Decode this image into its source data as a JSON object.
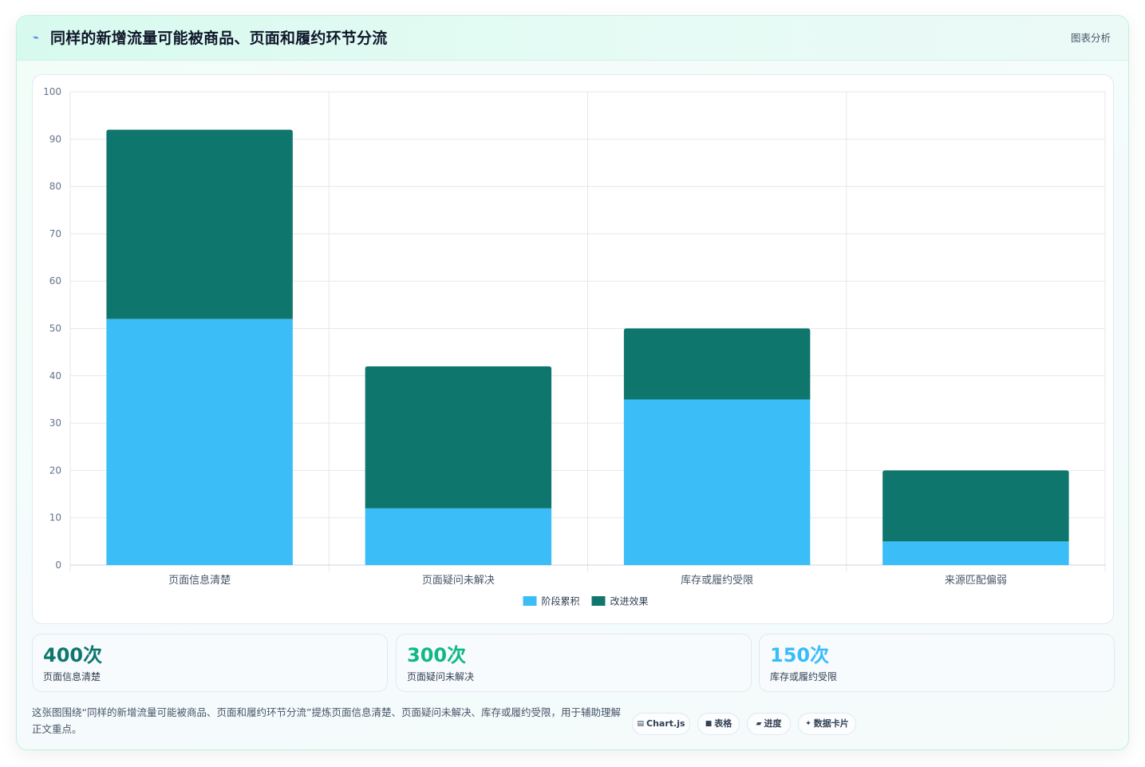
{
  "header": {
    "icon": "trend-icon",
    "title": "同样的新增流量可能被商品、页面和履约环节分流",
    "tag": "图表分析"
  },
  "chart_data": {
    "type": "bar",
    "stacked": true,
    "categories": [
      "页面信息清楚",
      "页面疑问未解决",
      "库存或履约受限",
      "来源匹配偏弱"
    ],
    "series": [
      {
        "name": "阶段累积",
        "values": [
          52,
          12,
          35,
          5
        ],
        "color": "#3bbdf7"
      },
      {
        "name": "改进效果",
        "values": [
          40,
          30,
          15,
          15
        ],
        "color": "#0f766e"
      }
    ],
    "ylim": [
      0,
      100
    ],
    "yticks": [
      0,
      10,
      20,
      30,
      40,
      50,
      60,
      70,
      80,
      90,
      100
    ],
    "grid": true,
    "legend": "bottom"
  },
  "stats": [
    {
      "value": "400次",
      "label": "页面信息清楚",
      "color": "#0f766e"
    },
    {
      "value": "300次",
      "label": "页面疑问未解决",
      "color": "#10b981"
    },
    {
      "value": "150次",
      "label": "库存或履约受限",
      "color": "#38bdf8"
    }
  ],
  "note": "这张图围绕“同样的新增流量可能被商品、页面和履约环节分流”提炼页面信息清楚、页面疑问未解决、库存或履约受限，用于辅助理解正文重点。",
  "chips": [
    {
      "icon": "chart-icon",
      "glyph": "▤",
      "label": "Chart.js"
    },
    {
      "icon": "table-icon",
      "glyph": "■",
      "label": "表格"
    },
    {
      "icon": "progress-icon",
      "glyph": "▰",
      "label": "进度"
    },
    {
      "icon": "sparkle-icon",
      "glyph": "✦",
      "label": "数据卡片"
    }
  ]
}
